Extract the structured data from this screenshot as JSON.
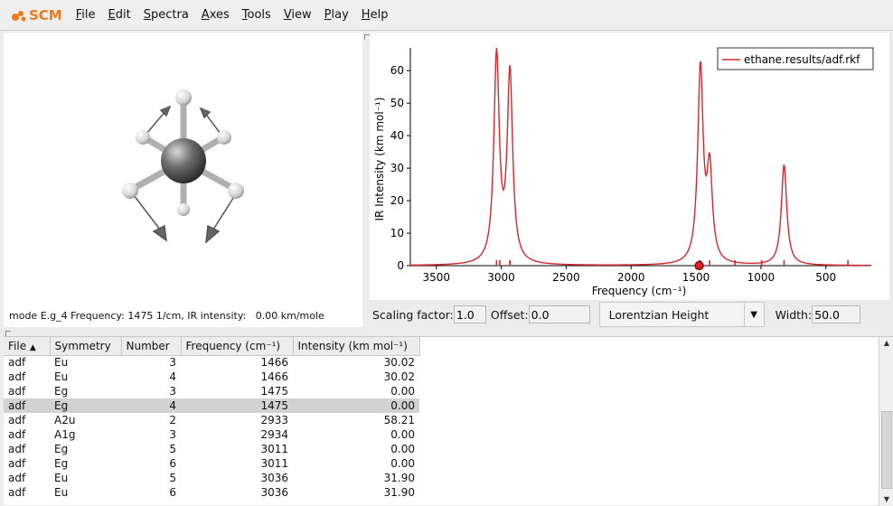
{
  "menu": {
    "logo_text": "SCM",
    "items": [
      "File",
      "Edit",
      "Spectra",
      "Axes",
      "Tools",
      "View",
      "Play",
      "Help"
    ]
  },
  "molecule": {
    "mode_text": "mode E.g_4 Frequency: 1475 1/cm, IR intensity:   0.00 km/mole"
  },
  "chart_data": {
    "type": "line",
    "xlabel": "Frequency (cm⁻¹)",
    "ylabel": "IR Intensity (km mol⁻¹)",
    "xlim": [
      3700,
      150
    ],
    "ylim": [
      0,
      67
    ],
    "x_ticks": [
      3500,
      3000,
      2500,
      2000,
      1500,
      1000,
      500
    ],
    "y_ticks": [
      0,
      10,
      20,
      30,
      40,
      50,
      60
    ],
    "legend": "top-right",
    "series": [
      {
        "name": "ethane.results/adf.rkf",
        "color": "#d62728"
      }
    ],
    "peaks": [
      {
        "x": 3036,
        "y": 63.8
      },
      {
        "x": 3011,
        "y": 0
      },
      {
        "x": 2934,
        "y": 0
      },
      {
        "x": 2933,
        "y": 58.21
      },
      {
        "x": 1475,
        "y": 0
      },
      {
        "x": 1466,
        "y": 60.04
      },
      {
        "x": 1395,
        "y": 28
      },
      {
        "x": 1200,
        "y": 0
      },
      {
        "x": 995,
        "y": 0
      },
      {
        "x": 822,
        "y": 31
      },
      {
        "x": 330,
        "y": 0
      }
    ],
    "width": 50.0,
    "selected_mode_x": 1475
  },
  "controls": {
    "scaling_label": "Scaling factor:",
    "scaling_value": "1.0",
    "offset_label": "Offset:",
    "offset_value": "0.0",
    "lineshape": "Lorentzian Height",
    "width_label": "Width:",
    "width_value": "50.0"
  },
  "table": {
    "columns": [
      "File",
      "Symmetry",
      "Number",
      "Frequency (cm⁻¹)",
      "Intensity (km mol⁻¹)"
    ],
    "rows": [
      [
        "adf",
        "Eu",
        "3",
        "1466",
        "30.02"
      ],
      [
        "adf",
        "Eu",
        "4",
        "1466",
        "30.02"
      ],
      [
        "adf",
        "Eg",
        "3",
        "1475",
        "0.00"
      ],
      [
        "adf",
        "Eg",
        "4",
        "1475",
        "0.00"
      ],
      [
        "adf",
        "A2u",
        "2",
        "2933",
        "58.21"
      ],
      [
        "adf",
        "A1g",
        "3",
        "2934",
        "0.00"
      ],
      [
        "adf",
        "Eg",
        "5",
        "3011",
        "0.00"
      ],
      [
        "adf",
        "Eg",
        "6",
        "3011",
        "0.00"
      ],
      [
        "adf",
        "Eu",
        "5",
        "3036",
        "31.90"
      ],
      [
        "adf",
        "Eu",
        "6",
        "3036",
        "31.90"
      ]
    ],
    "selected_row": 3
  }
}
